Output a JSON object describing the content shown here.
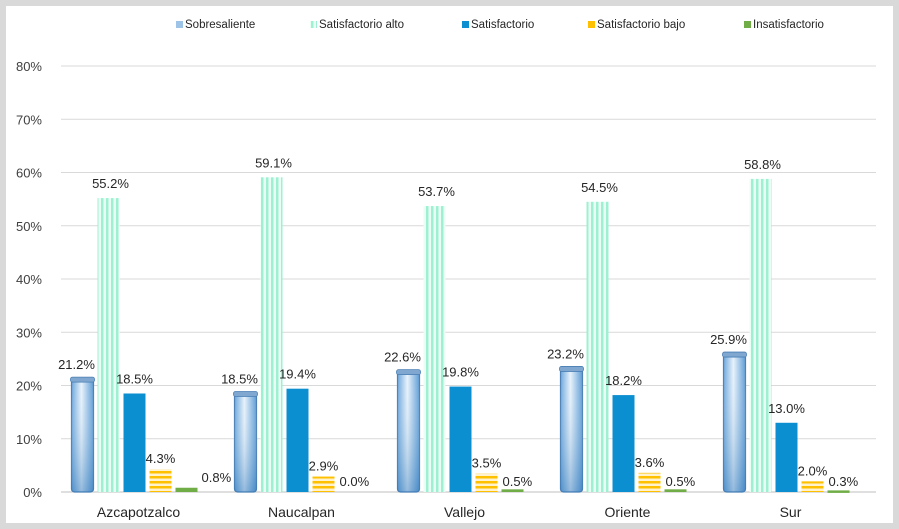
{
  "chart_data": {
    "type": "bar",
    "categories": [
      "Azcapotzalco",
      "Naucalpan",
      "Vallejo",
      "Oriente",
      "Sur"
    ],
    "series": [
      {
        "name": "Sobresaliente",
        "values": [
          21.2,
          18.5,
          22.6,
          23.2,
          25.9
        ],
        "labels": [
          "21.2%",
          "18.5%",
          "22.6%",
          "23.2%",
          "25.9%"
        ],
        "color": "#9dc3e6"
      },
      {
        "name": "Satisfactorio alto",
        "values": [
          55.2,
          59.1,
          53.7,
          54.5,
          58.8
        ],
        "labels": [
          "55.2%",
          "59.1%",
          "53.7%",
          "54.5%",
          "58.8%"
        ],
        "color": "#b9f5e0"
      },
      {
        "name": "Satisfactorio",
        "values": [
          18.5,
          19.4,
          19.8,
          18.2,
          13.0
        ],
        "labels": [
          "18.5%",
          "19.4%",
          "19.8%",
          "18.2%",
          "13.0%"
        ],
        "color": "#0b8fd1"
      },
      {
        "name": "Satisfactorio bajo",
        "values": [
          4.3,
          2.9,
          3.5,
          3.6,
          2.0
        ],
        "labels": [
          "4.3%",
          "2.9%",
          "3.5%",
          "3.6%",
          "2.0%"
        ],
        "color": "#ffc000"
      },
      {
        "name": "Insatisfactorio",
        "values": [
          0.8,
          0.0,
          0.5,
          0.5,
          0.3
        ],
        "labels": [
          "0.8%",
          "0.0%",
          "0.5%",
          "0.5%",
          "0.3%"
        ],
        "color": "#70ad47"
      }
    ],
    "ylim": [
      0,
      80
    ],
    "yticks": [
      "0%",
      "10%",
      "20%",
      "30%",
      "40%",
      "50%",
      "60%",
      "70%",
      "80%"
    ],
    "ytick_values": [
      0,
      10,
      20,
      30,
      40,
      50,
      60,
      70,
      80
    ],
    "grid": true,
    "legend_position": "top",
    "xlabel": "",
    "ylabel": ""
  }
}
